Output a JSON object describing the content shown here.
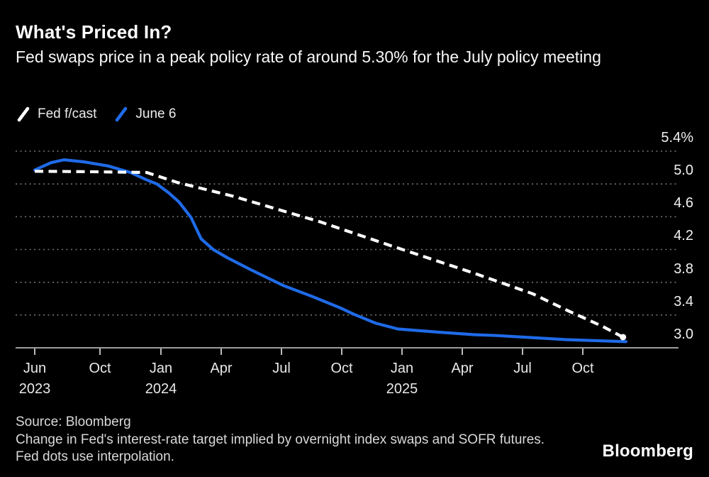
{
  "header": {
    "title": "What's Priced In?",
    "subtitle": "Fed swaps price in a peak policy rate of around 5.30% for the July policy meeting"
  },
  "footer": {
    "source": "Source: Bloomberg",
    "note": "Change in Fed's interest-rate target implied by overnight index swaps and SOFR futures. Fed dots use interpolation.",
    "logo": "Bloomberg"
  },
  "colors": {
    "background": "#000000",
    "accent_blue": "#1f6be8",
    "forecast_white": "#ffffff"
  },
  "chart_data": {
    "type": "line",
    "title": "What's Priced In?",
    "subtitle": "Fed swaps price in a peak policy rate of around 5.30% for the July policy meeting",
    "grid": "horizontal-dotted",
    "legend_position": "top-left",
    "ylim": [
      3.0,
      5.4
    ],
    "y_unit": "%",
    "y_ticks": [
      {
        "v": 5.4,
        "label": "5.4%"
      },
      {
        "v": 5.0,
        "label": "5.0"
      },
      {
        "v": 4.6,
        "label": "4.6"
      },
      {
        "v": 4.2,
        "label": "4.2"
      },
      {
        "v": 3.8,
        "label": "3.8"
      },
      {
        "v": 3.4,
        "label": "3.4"
      },
      {
        "v": 3.0,
        "label": "3.0"
      }
    ],
    "x_axis": {
      "start": "Jun 2023",
      "end": "Dec 2025",
      "unit": "months since Jun 2023"
    },
    "x_ticks": [
      {
        "m": 0,
        "label": "Jun",
        "year": "2023"
      },
      {
        "m": 4,
        "label": "Oct"
      },
      {
        "m": 7,
        "label": "Jan",
        "year": "2024"
      },
      {
        "m": 10,
        "label": "Apr"
      },
      {
        "m": 13,
        "label": "Jul"
      },
      {
        "m": 16,
        "label": "Oct"
      },
      {
        "m": 19,
        "label": "Jan",
        "year": "2025"
      },
      {
        "m": 22,
        "label": "Apr"
      },
      {
        "m": 25,
        "label": "Jul"
      },
      {
        "m": 28,
        "label": "Oct"
      }
    ],
    "series": [
      {
        "name": "June 6",
        "style": "solid",
        "color": "#1f6be8",
        "end_dot": false,
        "points": [
          [
            0,
            5.17
          ],
          [
            1,
            5.26
          ],
          [
            1.8,
            5.295
          ],
          [
            3,
            5.27
          ],
          [
            4.4,
            5.22
          ],
          [
            5.5,
            5.14
          ],
          [
            6.3,
            5.05
          ],
          [
            6.8,
            5.0
          ],
          [
            7.4,
            4.89
          ],
          [
            7.9,
            4.78
          ],
          [
            8.5,
            4.59
          ],
          [
            9.0,
            4.33
          ],
          [
            9.6,
            4.2
          ],
          [
            10.3,
            4.1
          ],
          [
            11.5,
            3.95
          ],
          [
            13.1,
            3.76
          ],
          [
            14.5,
            3.63
          ],
          [
            15.9,
            3.49
          ],
          [
            16.6,
            3.41
          ],
          [
            17.7,
            3.3
          ],
          [
            18.8,
            3.23
          ],
          [
            20.9,
            3.19
          ],
          [
            22.6,
            3.16
          ],
          [
            23.7,
            3.15
          ],
          [
            27.2,
            3.1
          ],
          [
            30.15,
            3.075
          ]
        ]
      },
      {
        "name": "Fed f/cast",
        "style": "dashed",
        "color": "#ffffff",
        "end_dot": true,
        "points": [
          [
            0,
            5.155
          ],
          [
            3,
            5.15
          ],
          [
            6.3,
            5.14
          ],
          [
            7.8,
            5.02
          ],
          [
            10.6,
            4.85
          ],
          [
            14.9,
            4.54
          ],
          [
            18.4,
            4.25
          ],
          [
            22.6,
            3.91
          ],
          [
            25.5,
            3.66
          ],
          [
            27.2,
            3.46
          ],
          [
            29.0,
            3.26
          ],
          [
            30.0,
            3.13
          ]
        ]
      }
    ]
  }
}
